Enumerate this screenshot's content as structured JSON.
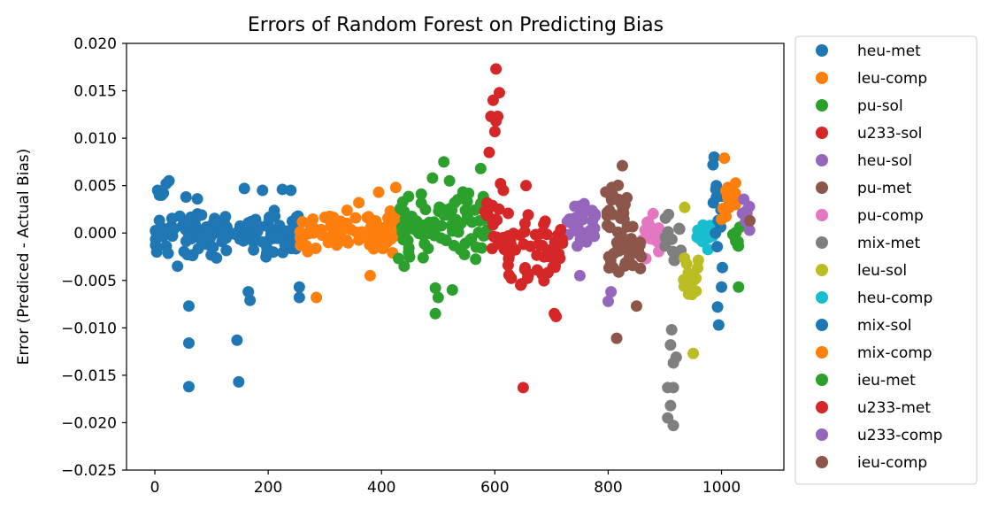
{
  "chart_data": {
    "type": "scatter",
    "title": "Errors of Random Forest on Predicting Bias",
    "xlabel": "",
    "ylabel": "Error (Prediced - Actual Bias)",
    "xlim": [
      -50,
      1110
    ],
    "ylim": [
      -0.025,
      0.02
    ],
    "x_ticks": [
      0,
      200,
      400,
      600,
      800,
      1000
    ],
    "x_tick_labels": [
      "0",
      "200",
      "400",
      "600",
      "800",
      "1000"
    ],
    "y_ticks": [
      -0.025,
      -0.02,
      -0.015,
      -0.01,
      -0.005,
      0.0,
      0.005,
      0.01,
      0.015,
      0.02
    ],
    "y_tick_labels": [
      "−0.025",
      "−0.020",
      "−0.015",
      "−0.010",
      "−0.005",
      "0.000",
      "0.005",
      "0.010",
      "0.015",
      "0.020"
    ],
    "grid": false,
    "legend_position": "outside-right",
    "series": [
      {
        "name": "heu-met",
        "color": "#1f77b4",
        "x_range": [
          0,
          255
        ],
        "band": [
          -0.003,
          0.003
        ],
        "extras": [
          [
            5,
            0.0045
          ],
          [
            8,
            0.004
          ],
          [
            12,
            0.004
          ],
          [
            15,
            0.0042
          ],
          [
            20,
            0.0052
          ],
          [
            25,
            0.0055
          ],
          [
            40,
            -0.0035
          ],
          [
            55,
            0.0038
          ],
          [
            60,
            -0.0077
          ],
          [
            60,
            -0.0116
          ],
          [
            60,
            -0.0162
          ],
          [
            75,
            0.0036
          ],
          [
            145,
            -0.0113
          ],
          [
            148,
            -0.0157
          ],
          [
            158,
            0.0047
          ],
          [
            165,
            -0.0062
          ],
          [
            168,
            -0.0071
          ],
          [
            190,
            0.0045
          ],
          [
            225,
            0.0046
          ],
          [
            240,
            0.0045
          ],
          [
            255,
            -0.0057
          ],
          [
            255,
            -0.0068
          ]
        ]
      },
      {
        "name": "leu-comp",
        "color": "#ff7f0e",
        "x_range": [
          255,
          430
        ],
        "band": [
          -0.0025,
          0.0025
        ],
        "extras": [
          [
            285,
            -0.0068
          ],
          [
            360,
            0.0032
          ],
          [
            380,
            -0.0045
          ],
          [
            395,
            0.0043
          ],
          [
            425,
            0.0048
          ]
        ]
      },
      {
        "name": "pu-sol",
        "color": "#2ca02c",
        "x_range": [
          430,
          590
        ],
        "band": [
          -0.003,
          0.005
        ],
        "extras": [
          [
            440,
            -0.0035
          ],
          [
            490,
            0.0058
          ],
          [
            495,
            -0.0085
          ],
          [
            495,
            -0.0058
          ],
          [
            500,
            -0.0068
          ],
          [
            510,
            0.0075
          ],
          [
            520,
            0.0055
          ],
          [
            525,
            -0.006
          ],
          [
            575,
            0.0068
          ],
          [
            580,
            -0.0003
          ]
        ]
      },
      {
        "name": "u233-sol",
        "color": "#d62728",
        "x_range": [
          580,
          610
        ],
        "band": [
          -0.0025,
          0.005
        ],
        "extras": [
          [
            590,
            0.0085
          ],
          [
            593,
            0.0123
          ],
          [
            597,
            0.014
          ],
          [
            600,
            0.0107
          ],
          [
            602,
            0.0118
          ],
          [
            605,
            0.0123
          ],
          [
            602,
            0.0173
          ],
          [
            608,
            0.0148
          ],
          [
            610,
            0.0052
          ]
        ]
      },
      {
        "name": "heu-sol",
        "color": "#9467bd",
        "x_range": [
          725,
          780
        ],
        "band": [
          -0.002,
          0.004
        ],
        "extras": [
          [
            750,
            -0.0045
          ]
        ]
      },
      {
        "name": "pu-met",
        "color": "#8c564b",
        "x_range": [
          795,
          835
        ],
        "band": [
          0.0005,
          0.0055
        ],
        "extras": [
          [
            825,
            0.0071
          ]
        ]
      },
      {
        "name": "pu-comp",
        "color": "#e377c2",
        "x_range": [
          860,
          895
        ],
        "band": [
          -0.003,
          0.003
        ],
        "extras": []
      },
      {
        "name": "mix-met",
        "color": "#7f7f7f",
        "x_range": [
          900,
          930
        ],
        "band": [
          -0.0035,
          0.003
        ],
        "extras": [
          [
            905,
            -0.0163
          ],
          [
            905,
            -0.0195
          ],
          [
            910,
            -0.0182
          ],
          [
            912,
            -0.0102
          ],
          [
            915,
            -0.0163
          ],
          [
            915,
            -0.0203
          ],
          [
            915,
            -0.0137
          ],
          [
            920,
            -0.0131
          ],
          [
            910,
            -0.0118
          ]
        ]
      },
      {
        "name": "leu-sol",
        "color": "#bcbd22",
        "x_range": [
          930,
          960
        ],
        "band": [
          -0.008,
          -0.002
        ],
        "extras": [
          [
            935,
            0.0027
          ],
          [
            950,
            -0.0127
          ]
        ]
      },
      {
        "name": "heu-comp",
        "color": "#17becf",
        "x_range": [
          955,
          985
        ],
        "band": [
          -0.002,
          0.0015
        ],
        "extras": []
      },
      {
        "name": "mix-sol",
        "color": "#1f77b4",
        "x_range": [
          985,
          1005
        ],
        "band": [
          -0.0095,
          0.0078
        ],
        "extras": [
          [
            985,
            0.0072
          ],
          [
            987,
            0.008
          ],
          [
            990,
            0.0046
          ],
          [
            995,
            -0.0097
          ],
          [
            993,
            -0.0078
          ],
          [
            1000,
            -0.0057
          ]
        ]
      },
      {
        "name": "mix-comp",
        "color": "#ff7f0e",
        "x_range": [
          1000,
          1030
        ],
        "band": [
          0.001,
          0.0055
        ],
        "extras": [
          [
            1005,
            0.0079
          ]
        ]
      },
      {
        "name": "ieu-met",
        "color": "#2ca02c",
        "x_range": [
          1020,
          1035
        ],
        "band": [
          -0.0035,
          0.0025
        ],
        "extras": [
          [
            1030,
            -0.0057
          ]
        ]
      },
      {
        "name": "u233-met",
        "color": "#d62728",
        "x_range": [
          610,
          720
        ],
        "band": [
          -0.006,
          0.003
        ],
        "extras": [
          [
            615,
            0.0045
          ],
          [
            650,
            -0.0163
          ],
          [
            655,
            0.005
          ],
          [
            705,
            -0.0085
          ],
          [
            708,
            -0.0088
          ]
        ]
      },
      {
        "name": "u233-comp",
        "color": "#9467bd",
        "x_range": [
          1035,
          1050
        ],
        "band": [
          -0.0005,
          0.004
        ],
        "extras": [
          [
            800,
            -0.0072
          ],
          [
            805,
            -0.0062
          ]
        ]
      },
      {
        "name": "ieu-comp",
        "color": "#8c564b",
        "x_range": [
          800,
          860
        ],
        "band": [
          -0.005,
          0.0015
        ],
        "extras": [
          [
            815,
            -0.0111
          ],
          [
            850,
            -0.0077
          ],
          [
            1050,
            0.0013
          ]
        ]
      }
    ]
  }
}
